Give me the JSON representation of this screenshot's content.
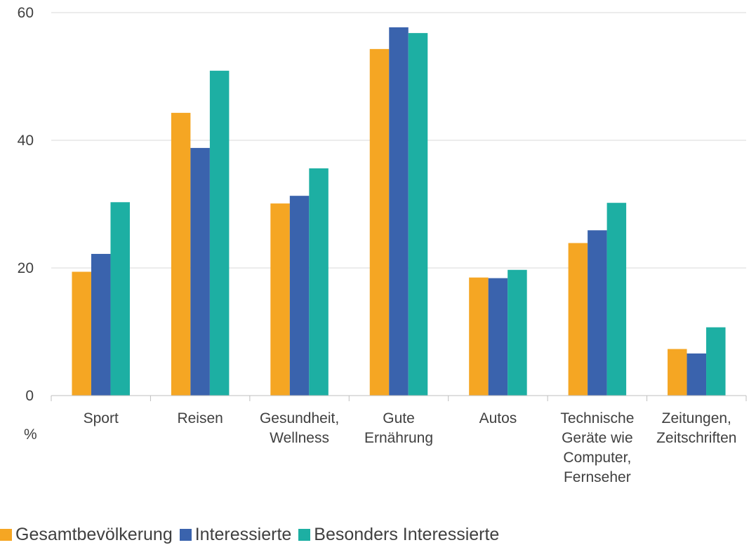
{
  "chart_data": {
    "type": "bar",
    "unit_label": "%",
    "categories": [
      [
        "Sport"
      ],
      [
        "Reisen"
      ],
      [
        "Gesundheit,",
        "Wellness"
      ],
      [
        "Gute",
        "Ernährung"
      ],
      [
        "Autos"
      ],
      [
        "Technische",
        "Geräte wie",
        "Computer,",
        "Fernseher"
      ],
      [
        "Zeitungen,",
        "Zeitschriften"
      ]
    ],
    "series": [
      {
        "name": "Gesamtbevölkerung",
        "color": "#F5A623",
        "values": [
          19.4,
          44.3,
          30.1,
          54.3,
          18.5,
          23.9,
          7.3
        ]
      },
      {
        "name": "Interessierte",
        "color": "#3A63AD",
        "values": [
          22.2,
          38.8,
          31.3,
          57.7,
          18.4,
          25.9,
          6.6
        ]
      },
      {
        "name": "Besonders Interessierte",
        "color": "#1DAFA3",
        "values": [
          30.3,
          50.9,
          35.6,
          56.8,
          19.7,
          30.2,
          10.7
        ]
      }
    ],
    "ylim": [
      0,
      60
    ],
    "yticks": [
      0,
      20,
      40,
      60
    ],
    "grid": true,
    "legend_position": "bottom"
  }
}
